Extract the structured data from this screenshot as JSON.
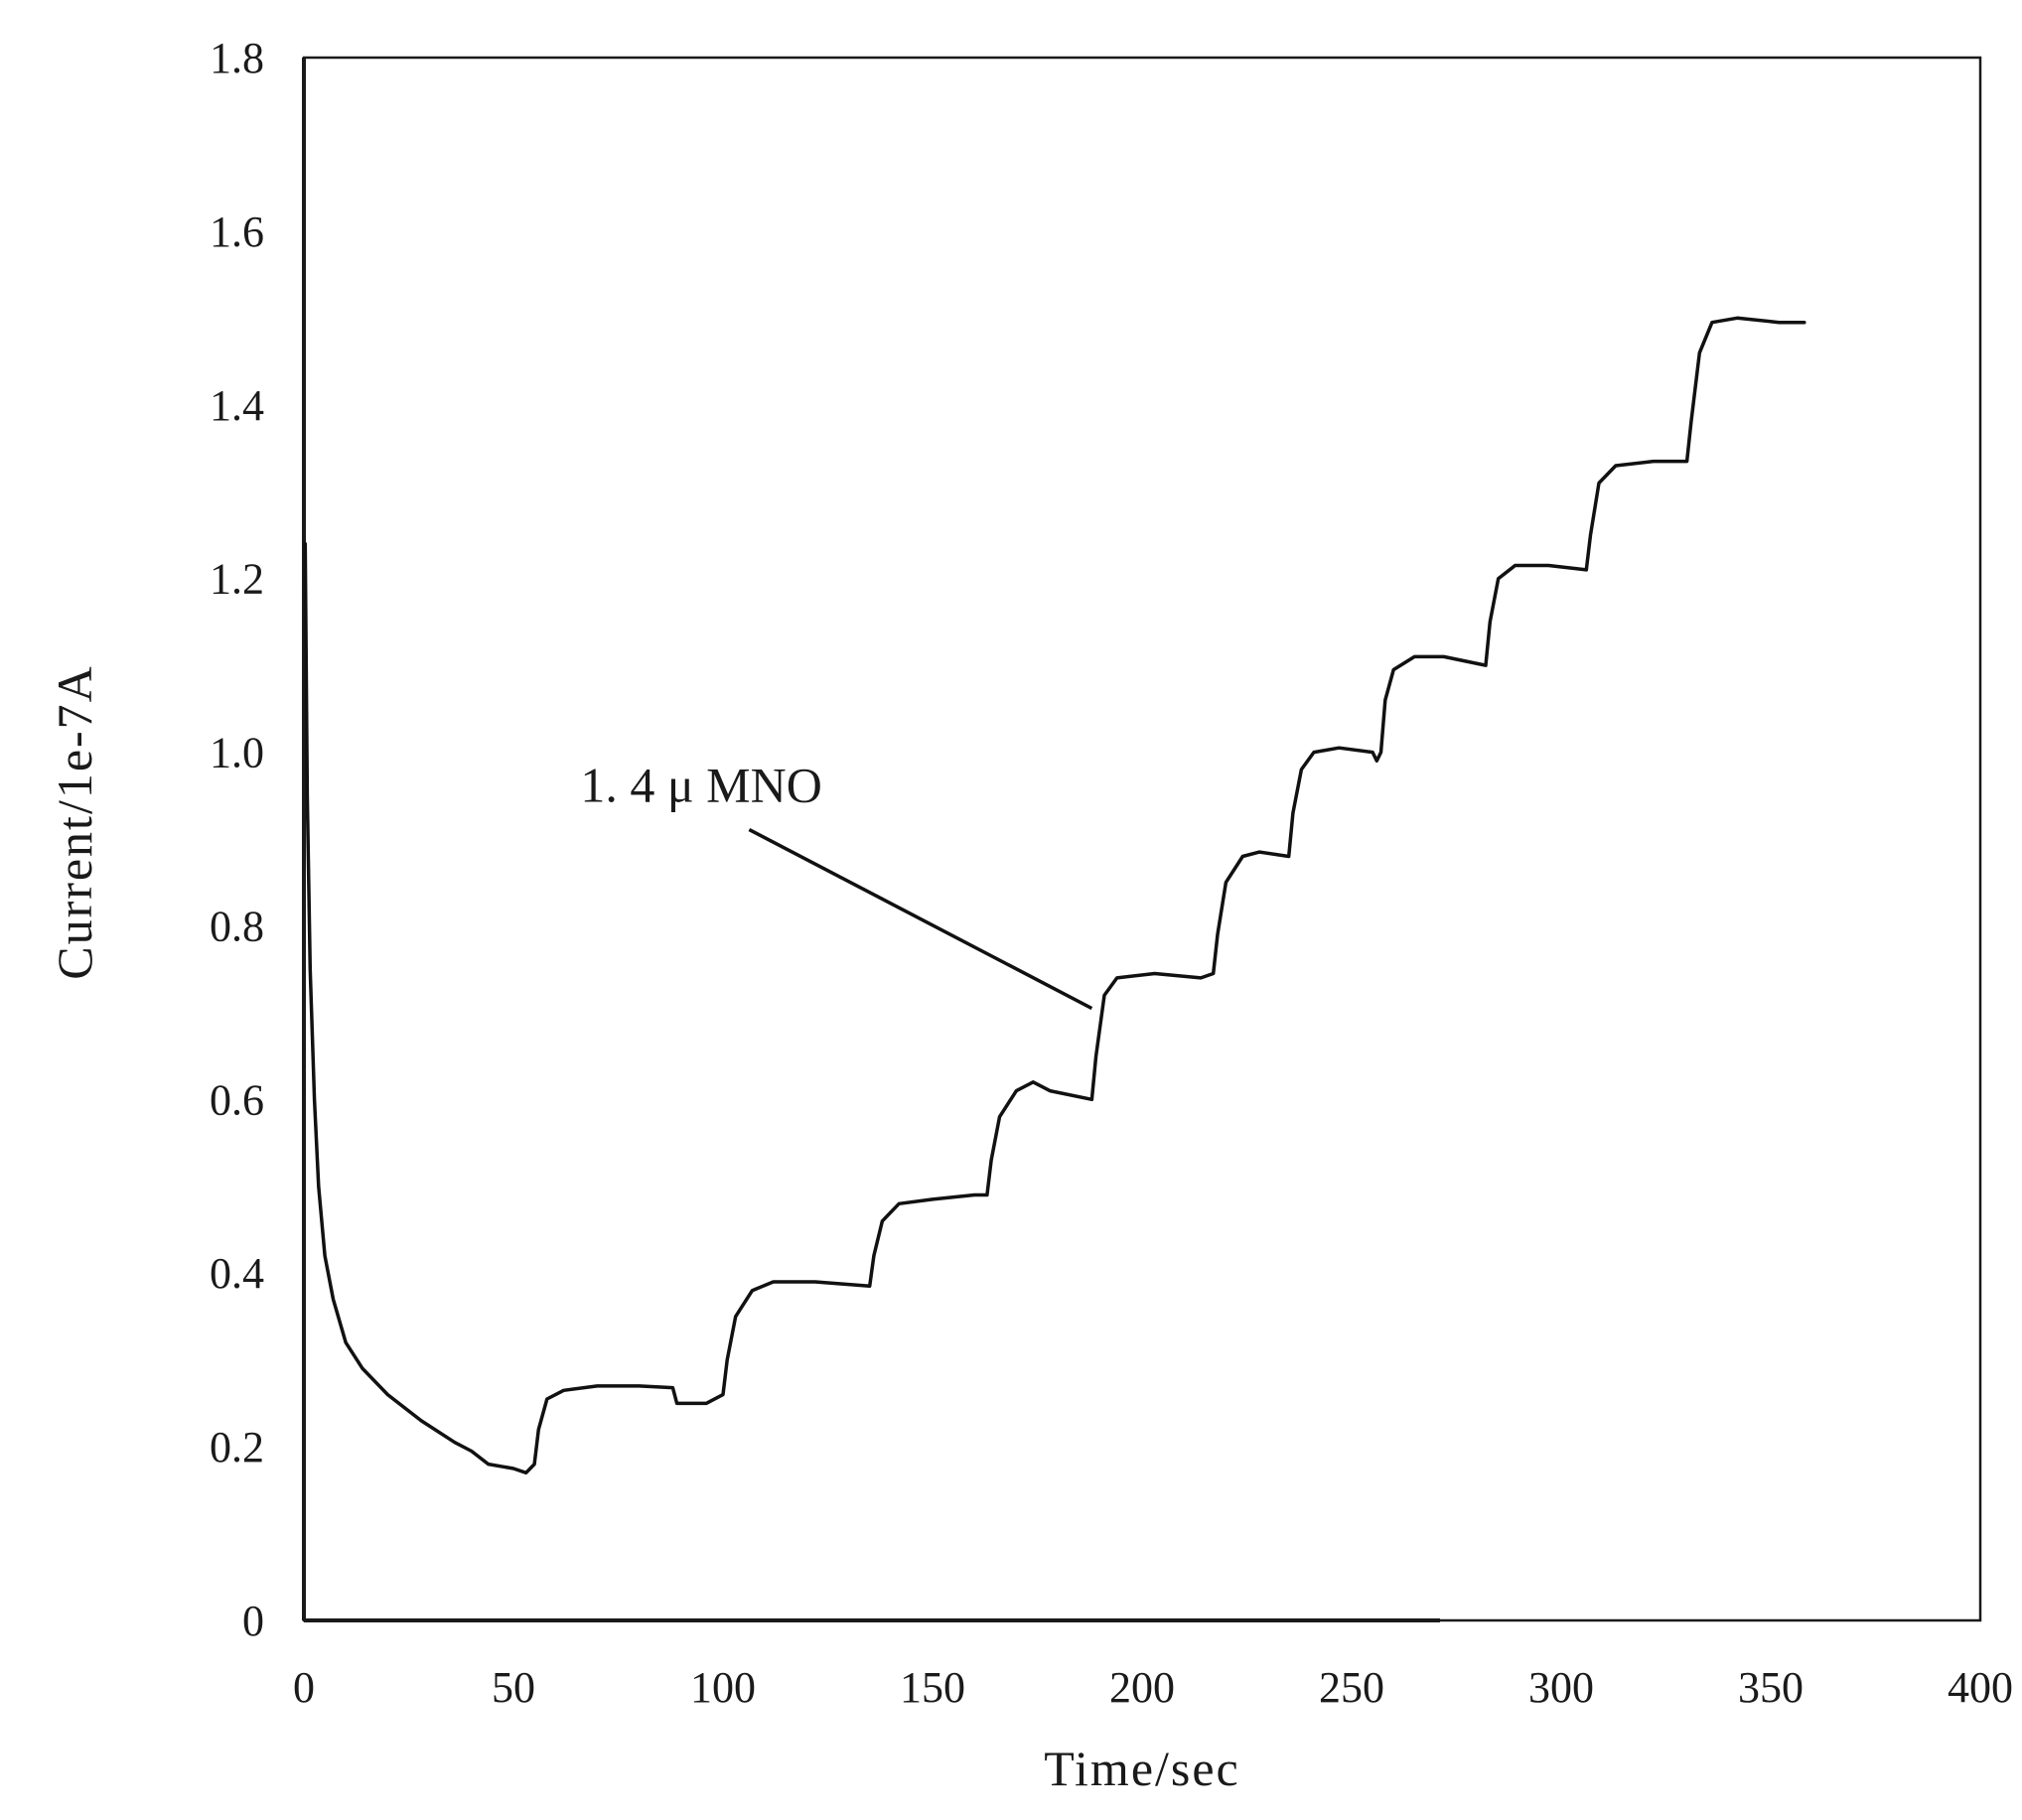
{
  "chart_data": {
    "type": "line",
    "title": "",
    "xlabel": "Time/sec",
    "ylabel": "Current/1e-7A",
    "xlim": [
      0,
      400
    ],
    "ylim": [
      0,
      1.8
    ],
    "x_ticks": [
      0,
      50,
      100,
      150,
      200,
      250,
      300,
      350,
      400
    ],
    "y_ticks": [
      0,
      0.2,
      0.4,
      0.6,
      0.8,
      1.0,
      1.2,
      1.4,
      1.6,
      1.8
    ],
    "x_tick_labels": [
      "0",
      "50",
      "100",
      "150",
      "200",
      "250",
      "300",
      "350",
      "400"
    ],
    "y_tick_labels": [
      "0",
      "0.2",
      "0.4",
      "0.6",
      "0.8",
      "1.0",
      "1.2",
      "1.4",
      "1.6",
      "1.8"
    ],
    "grid": false,
    "line_color": "#111111",
    "series": [
      {
        "name": "",
        "points": [
          [
            0.3,
            1.24
          ],
          [
            0.8,
            0.95
          ],
          [
            1.5,
            0.75
          ],
          [
            2.5,
            0.6
          ],
          [
            3.5,
            0.5
          ],
          [
            5,
            0.42
          ],
          [
            7,
            0.37
          ],
          [
            10,
            0.32
          ],
          [
            14,
            0.29
          ],
          [
            20,
            0.26
          ],
          [
            28,
            0.23
          ],
          [
            36,
            0.205
          ],
          [
            40,
            0.195
          ],
          [
            44,
            0.18
          ],
          [
            50,
            0.175
          ],
          [
            53,
            0.17
          ],
          [
            55,
            0.18
          ],
          [
            56,
            0.22
          ],
          [
            58,
            0.255
          ],
          [
            62,
            0.265
          ],
          [
            70,
            0.27
          ],
          [
            80,
            0.27
          ],
          [
            88,
            0.268
          ],
          [
            89,
            0.25
          ],
          [
            96,
            0.25
          ],
          [
            100,
            0.26
          ],
          [
            101,
            0.3
          ],
          [
            103,
            0.35
          ],
          [
            107,
            0.38
          ],
          [
            112,
            0.39
          ],
          [
            122,
            0.39
          ],
          [
            135,
            0.385
          ],
          [
            136,
            0.42
          ],
          [
            138,
            0.46
          ],
          [
            142,
            0.48
          ],
          [
            150,
            0.485
          ],
          [
            160,
            0.49
          ],
          [
            163,
            0.49
          ],
          [
            164,
            0.53
          ],
          [
            166,
            0.58
          ],
          [
            170,
            0.61
          ],
          [
            174,
            0.62
          ],
          [
            178,
            0.61
          ],
          [
            188,
            0.6
          ],
          [
            189,
            0.65
          ],
          [
            191,
            0.72
          ],
          [
            194,
            0.74
          ],
          [
            203,
            0.745
          ],
          [
            214,
            0.74
          ],
          [
            217,
            0.745
          ],
          [
            218,
            0.79
          ],
          [
            220,
            0.85
          ],
          [
            224,
            0.88
          ],
          [
            228,
            0.885
          ],
          [
            235,
            0.88
          ],
          [
            236,
            0.93
          ],
          [
            238,
            0.98
          ],
          [
            241,
            1.0
          ],
          [
            247,
            1.005
          ],
          [
            255,
            1.0
          ],
          [
            256,
            0.99
          ],
          [
            257,
            1.0
          ],
          [
            258,
            1.06
          ],
          [
            260,
            1.095
          ],
          [
            265,
            1.11
          ],
          [
            272,
            1.11
          ],
          [
            282,
            1.1
          ],
          [
            283,
            1.15
          ],
          [
            285,
            1.2
          ],
          [
            289,
            1.215
          ],
          [
            297,
            1.215
          ],
          [
            306,
            1.21
          ],
          [
            307,
            1.25
          ],
          [
            309,
            1.31
          ],
          [
            313,
            1.33
          ],
          [
            322,
            1.335
          ],
          [
            330,
            1.335
          ],
          [
            331,
            1.38
          ],
          [
            333,
            1.46
          ],
          [
            336,
            1.495
          ],
          [
            342,
            1.5
          ],
          [
            352,
            1.495
          ],
          [
            358,
            1.495
          ]
        ]
      }
    ],
    "annotations": [
      {
        "text": "1. 4 μ MNO",
        "target": [
          188,
          0.705
        ]
      }
    ]
  }
}
